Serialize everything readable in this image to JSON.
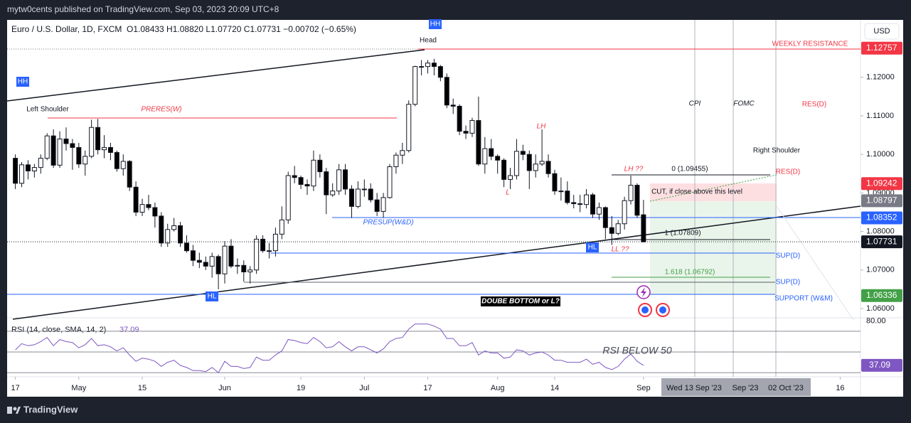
{
  "header": "mytw0cents published on TradingView.com, Sep 03, 2023 20:09 UTC+8",
  "footer": "TradingView",
  "chart_data": {
    "type": "candlestick",
    "title": "Euro / U.S. Dollar, 1D, FXCM",
    "ohlc_legend": "O1.08433 H1.08820 L1.07720 C1.07731 −0.00702 (−0.65%)",
    "currency": "USD",
    "up_color": "#ffffff",
    "down_color": "#000000",
    "ohlc": [
      [
        1.099,
        1.1,
        1.091,
        1.0925
      ],
      [
        1.0925,
        1.098,
        1.0915,
        1.0973
      ],
      [
        1.0973,
        1.0985,
        1.0935,
        1.0957
      ],
      [
        1.0957,
        1.0975,
        1.094,
        1.0966
      ],
      [
        1.0966,
        1.1,
        1.095,
        1.099
      ],
      [
        1.099,
        1.1055,
        1.0985,
        1.1048
      ],
      [
        1.1048,
        1.1065,
        1.0965,
        1.0972
      ],
      [
        1.0972,
        1.106,
        1.0965,
        1.104
      ],
      [
        1.104,
        1.107,
        1.101,
        1.1028
      ],
      [
        1.1028,
        1.104,
        1.096,
        1.1018
      ],
      [
        1.1018,
        1.103,
        1.0965,
        1.0975
      ],
      [
        1.0975,
        1.101,
        1.0945,
        1.0995
      ],
      [
        1.0995,
        1.109,
        1.099,
        1.107
      ],
      [
        1.107,
        1.1092,
        1.1,
        1.1012
      ],
      [
        1.1012,
        1.105,
        1.099,
        1.1018
      ],
      [
        1.1018,
        1.103,
        1.0985,
        1.1005
      ],
      [
        1.1005,
        1.101,
        1.0955,
        1.0963
      ],
      [
        1.0963,
        1.1,
        1.0945,
        1.0982
      ],
      [
        1.0982,
        1.0985,
        1.0905,
        1.0915
      ],
      [
        1.0915,
        1.093,
        1.084,
        1.085
      ],
      [
        1.085,
        1.0885,
        1.084,
        1.087
      ],
      [
        1.087,
        1.0895,
        1.0855,
        1.0862
      ],
      [
        1.0862,
        1.0875,
        1.081,
        1.084
      ],
      [
        1.084,
        1.085,
        1.076,
        1.077
      ],
      [
        1.077,
        1.082,
        1.076,
        1.0805
      ],
      [
        1.0805,
        1.0835,
        1.08,
        1.0815
      ],
      [
        1.0815,
        1.0825,
        1.076,
        1.077
      ],
      [
        1.077,
        1.079,
        1.0745,
        1.075
      ],
      [
        1.075,
        1.0765,
        1.071,
        1.0725
      ],
      [
        1.0725,
        1.0745,
        1.0705,
        1.072
      ],
      [
        1.072,
        1.0735,
        1.07,
        1.071
      ],
      [
        1.071,
        1.0745,
        1.068,
        1.0735
      ],
      [
        1.0735,
        1.074,
        1.065,
        1.069
      ],
      [
        1.069,
        1.0775,
        1.0665,
        1.0762
      ],
      [
        1.0762,
        1.078,
        1.0705,
        1.071
      ],
      [
        1.071,
        1.073,
        1.069,
        1.0712
      ],
      [
        1.0712,
        1.0725,
        1.067,
        1.0695
      ],
      [
        1.0695,
        1.071,
        1.0665,
        1.07
      ],
      [
        1.07,
        1.079,
        1.069,
        1.078
      ],
      [
        1.078,
        1.079,
        1.0745,
        1.075
      ],
      [
        1.075,
        1.077,
        1.073,
        1.075
      ],
      [
        1.075,
        1.081,
        1.0735,
        1.0793
      ],
      [
        1.0793,
        1.0865,
        1.078,
        1.083
      ],
      [
        1.083,
        1.0955,
        1.082,
        1.0945
      ],
      [
        1.0945,
        1.097,
        1.0925,
        1.094
      ],
      [
        1.094,
        1.0945,
        1.091,
        1.0922
      ],
      [
        1.0922,
        1.0935,
        1.0895,
        1.0918
      ],
      [
        1.0918,
        1.101,
        1.0905,
        1.0985
      ],
      [
        1.0985,
        1.1,
        1.094,
        1.0955
      ],
      [
        1.0955,
        1.0965,
        1.0845,
        1.0895
      ],
      [
        1.0895,
        1.0925,
        1.089,
        1.0905
      ],
      [
        1.0905,
        1.0975,
        1.0895,
        1.096
      ],
      [
        1.096,
        1.0975,
        1.0895,
        1.091
      ],
      [
        1.091,
        1.092,
        1.0835,
        1.0865
      ],
      [
        1.0865,
        1.093,
        1.086,
        1.091
      ],
      [
        1.091,
        1.0935,
        1.089,
        1.091
      ],
      [
        1.091,
        1.0925,
        1.0875,
        1.0882
      ],
      [
        1.0882,
        1.09,
        1.084,
        1.0852
      ],
      [
        1.0852,
        1.09,
        1.0835,
        1.0888
      ],
      [
        1.0888,
        1.0975,
        1.0885,
        1.0968
      ],
      [
        1.0968,
        1.1005,
        1.095,
        1.0998
      ],
      [
        1.0998,
        1.103,
        1.0975,
        1.101
      ],
      [
        1.101,
        1.114,
        1.1005,
        1.113
      ],
      [
        1.113,
        1.123,
        1.1125,
        1.1228
      ],
      [
        1.1228,
        1.1245,
        1.1205,
        1.1228
      ],
      [
        1.1228,
        1.1245,
        1.121,
        1.1237
      ],
      [
        1.1237,
        1.1248,
        1.1205,
        1.1228
      ],
      [
        1.1228,
        1.1232,
        1.119,
        1.12
      ],
      [
        1.12,
        1.121,
        1.112,
        1.1128
      ],
      [
        1.1128,
        1.1145,
        1.1105,
        1.1125
      ],
      [
        1.1125,
        1.113,
        1.105,
        1.106
      ],
      [
        1.106,
        1.1075,
        1.104,
        1.1055
      ],
      [
        1.1055,
        1.1095,
        1.1045,
        1.1088
      ],
      [
        1.1088,
        1.115,
        1.097,
        1.0975
      ],
      [
        1.0975,
        1.1045,
        1.095,
        1.1015
      ],
      [
        1.1015,
        1.104,
        1.0985,
        1.0995
      ],
      [
        1.0995,
        1.1,
        1.095,
        1.0985
      ],
      [
        1.0985,
        1.099,
        1.0915,
        1.0935
      ],
      [
        1.0935,
        1.0965,
        1.091,
        1.0945
      ],
      [
        1.0945,
        1.104,
        1.0935,
        1.1008
      ],
      [
        1.1008,
        1.1025,
        1.0985,
        1.1
      ],
      [
        1.1,
        1.101,
        1.091,
        1.0958
      ],
      [
        1.0958,
        1.1,
        1.094,
        1.0975
      ],
      [
        1.0975,
        1.1065,
        1.097,
        1.0982
      ],
      [
        1.0982,
        1.1,
        1.094,
        1.095
      ],
      [
        1.095,
        1.096,
        1.0895,
        1.0905
      ],
      [
        1.0905,
        1.094,
        1.088,
        1.0905
      ],
      [
        1.0905,
        1.093,
        1.087,
        1.0875
      ],
      [
        1.0875,
        1.0895,
        1.086,
        1.0872
      ],
      [
        1.0872,
        1.0895,
        1.085,
        1.087
      ],
      [
        1.087,
        1.091,
        1.086,
        1.0895
      ],
      [
        1.0895,
        1.09,
        1.0835,
        1.0845
      ],
      [
        1.0845,
        1.0875,
        1.083,
        1.0862
      ],
      [
        1.0862,
        1.0865,
        1.078,
        1.081
      ],
      [
        1.081,
        1.084,
        1.0765,
        1.0795
      ],
      [
        1.0795,
        1.083,
        1.079,
        1.082
      ],
      [
        1.082,
        1.089,
        1.0805,
        1.088
      ],
      [
        1.088,
        1.0945,
        1.087,
        1.092
      ],
      [
        1.092,
        1.0925,
        1.0835,
        1.0842
      ],
      [
        1.08433,
        1.0882,
        1.0772,
        1.07731
      ]
    ],
    "xlim": [
      -1.3,
      133.2
    ],
    "xticks": [
      {
        "value": 0,
        "label": "17"
      },
      {
        "value": 10,
        "label": "May"
      },
      {
        "value": 20,
        "label": "15"
      },
      {
        "value": 33,
        "label": "Jun"
      },
      {
        "value": 45,
        "label": "19"
      },
      {
        "value": 55,
        "label": "Jul"
      },
      {
        "value": 65,
        "label": "17"
      },
      {
        "value": 76,
        "label": "Aug"
      },
      {
        "value": 85,
        "label": "14"
      },
      {
        "value": 99,
        "label": "Sep"
      },
      {
        "value": 130,
        "label": "16"
      }
    ],
    "ylim": [
      1.0576,
      1.1349
    ],
    "yticks": [
      {
        "value": 1.06,
        "label": "1.06000"
      },
      {
        "value": 1.07,
        "label": "1.07000"
      },
      {
        "value": 1.08,
        "label": "1.08000"
      },
      {
        "value": 1.09,
        "label": "1.09000"
      },
      {
        "value": 1.1,
        "label": "1.10000"
      },
      {
        "value": 1.11,
        "label": "1.11000"
      },
      {
        "value": 1.12,
        "label": "1.12000"
      }
    ],
    "price_labels": [
      {
        "value": 1.12757,
        "label": "1.12757",
        "color": "#f23645"
      },
      {
        "value": 1.09242,
        "label": "1.09242",
        "color": "#f23645"
      },
      {
        "value": 1.08797,
        "label": "1.08797",
        "color": "#787b86"
      },
      {
        "value": 1.08352,
        "label": "1.08352",
        "color": "#2962ff"
      },
      {
        "value": 1.07731,
        "label": "1.07731",
        "color": "#131722"
      },
      {
        "value": 1.06336,
        "label": "1.06336",
        "color": "#43a047"
      }
    ],
    "time_highlight_labels": [
      "Wed 13 Sep '23",
      "Sep '23",
      "02 Oct '23"
    ],
    "annotations": [
      "Head",
      "HH",
      "HH",
      "Left Shoulder",
      "PRERES(W)",
      "WEEKLY RESISTANCE",
      "CPI",
      "FOMC",
      "RES(D)",
      "Right Shoulder",
      "LH",
      "L",
      "LH ??",
      "0 (1.09455)",
      "RES(D)",
      "CUT, if close above this level",
      "PRESUP(W&D)",
      "1 (1.07809)",
      "HL",
      "LL ??",
      "SUP(D)",
      "1.618 (1.06792)",
      "SUP(D)",
      "HL",
      "SUPPORT (W&M)",
      "DOUBE BOTTOM or L?",
      "RSI BELOW 50"
    ],
    "rsi": {
      "title": "RSI (14, close, SMA, 14, 2)",
      "color": "#7e57c2",
      "ylim": [
        26,
        83
      ],
      "yticks": [
        {
          "value": 80,
          "label": "80.00"
        }
      ],
      "levels": [
        70,
        50,
        30
      ],
      "values": [
        52,
        58,
        56,
        57,
        60,
        64,
        56,
        62,
        60,
        59,
        54,
        57,
        63,
        56,
        57,
        55,
        51,
        54,
        47,
        41,
        44,
        43,
        41,
        36,
        40,
        42,
        37,
        35,
        32,
        32,
        31,
        35,
        30,
        41,
        36,
        36,
        34,
        35,
        45,
        42,
        42,
        47,
        51,
        62,
        61,
        59,
        58,
        64,
        60,
        54,
        55,
        60,
        55,
        51,
        55,
        55,
        52,
        49,
        53,
        60,
        63,
        64,
        72,
        77,
        77,
        77,
        75,
        72,
        63,
        63,
        56,
        56,
        59,
        47,
        51,
        49,
        49,
        44,
        45,
        52,
        51,
        47,
        49,
        50,
        47,
        42,
        42,
        40,
        40,
        40,
        43,
        38,
        40,
        35,
        33,
        36,
        43,
        48,
        41,
        37.09
      ]
    }
  }
}
